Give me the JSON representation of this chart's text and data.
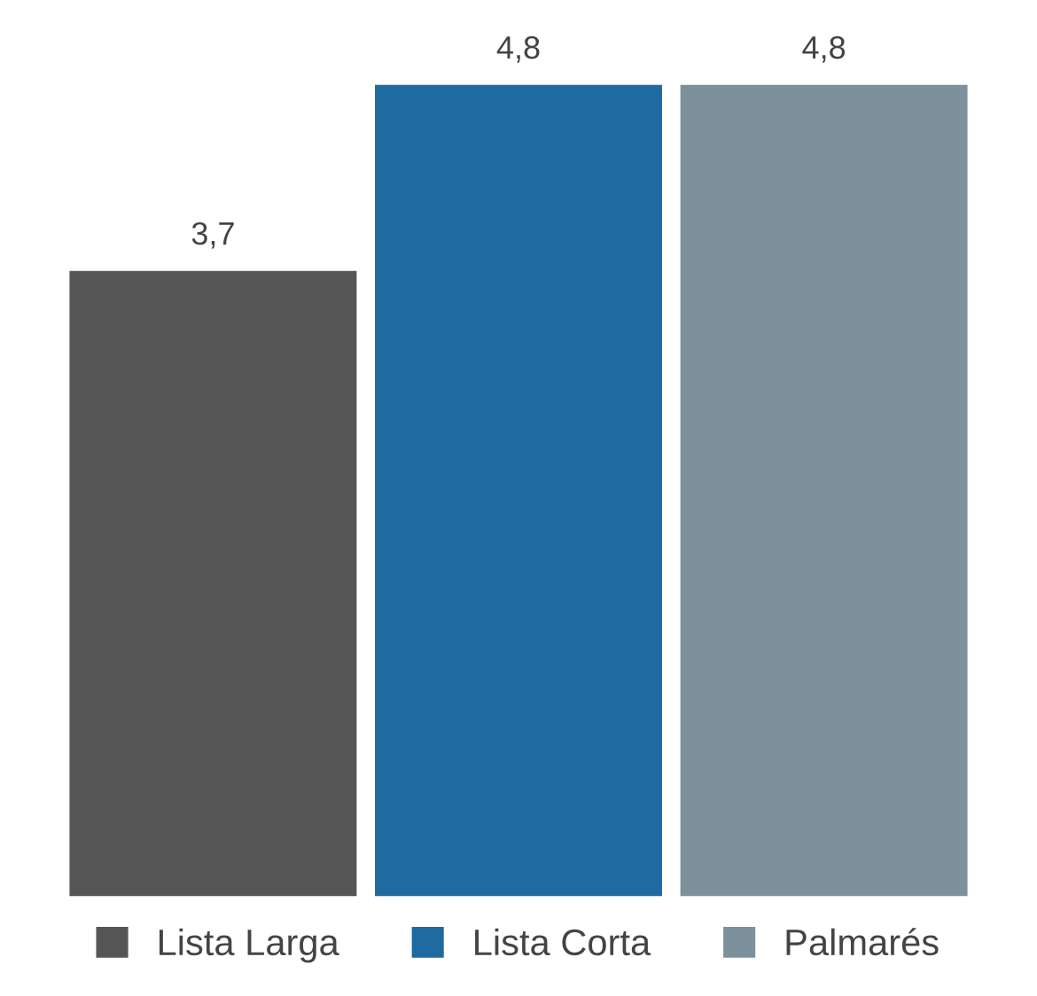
{
  "chart_data": {
    "type": "bar",
    "categories": [
      null
    ],
    "series": [
      {
        "name": "Lista Larga",
        "color": "#555555",
        "values": [
          3.7
        ],
        "value_labels": [
          "3,7"
        ]
      },
      {
        "name": "Lista Corta",
        "color": "#1f6aa0",
        "values": [
          4.8
        ],
        "value_labels": [
          "4,8"
        ]
      },
      {
        "name": "Palmarés",
        "color": "#7d919c",
        "values": [
          4.8
        ],
        "value_labels": [
          "4,8"
        ]
      }
    ],
    "grid": false,
    "legend": "bottom"
  }
}
